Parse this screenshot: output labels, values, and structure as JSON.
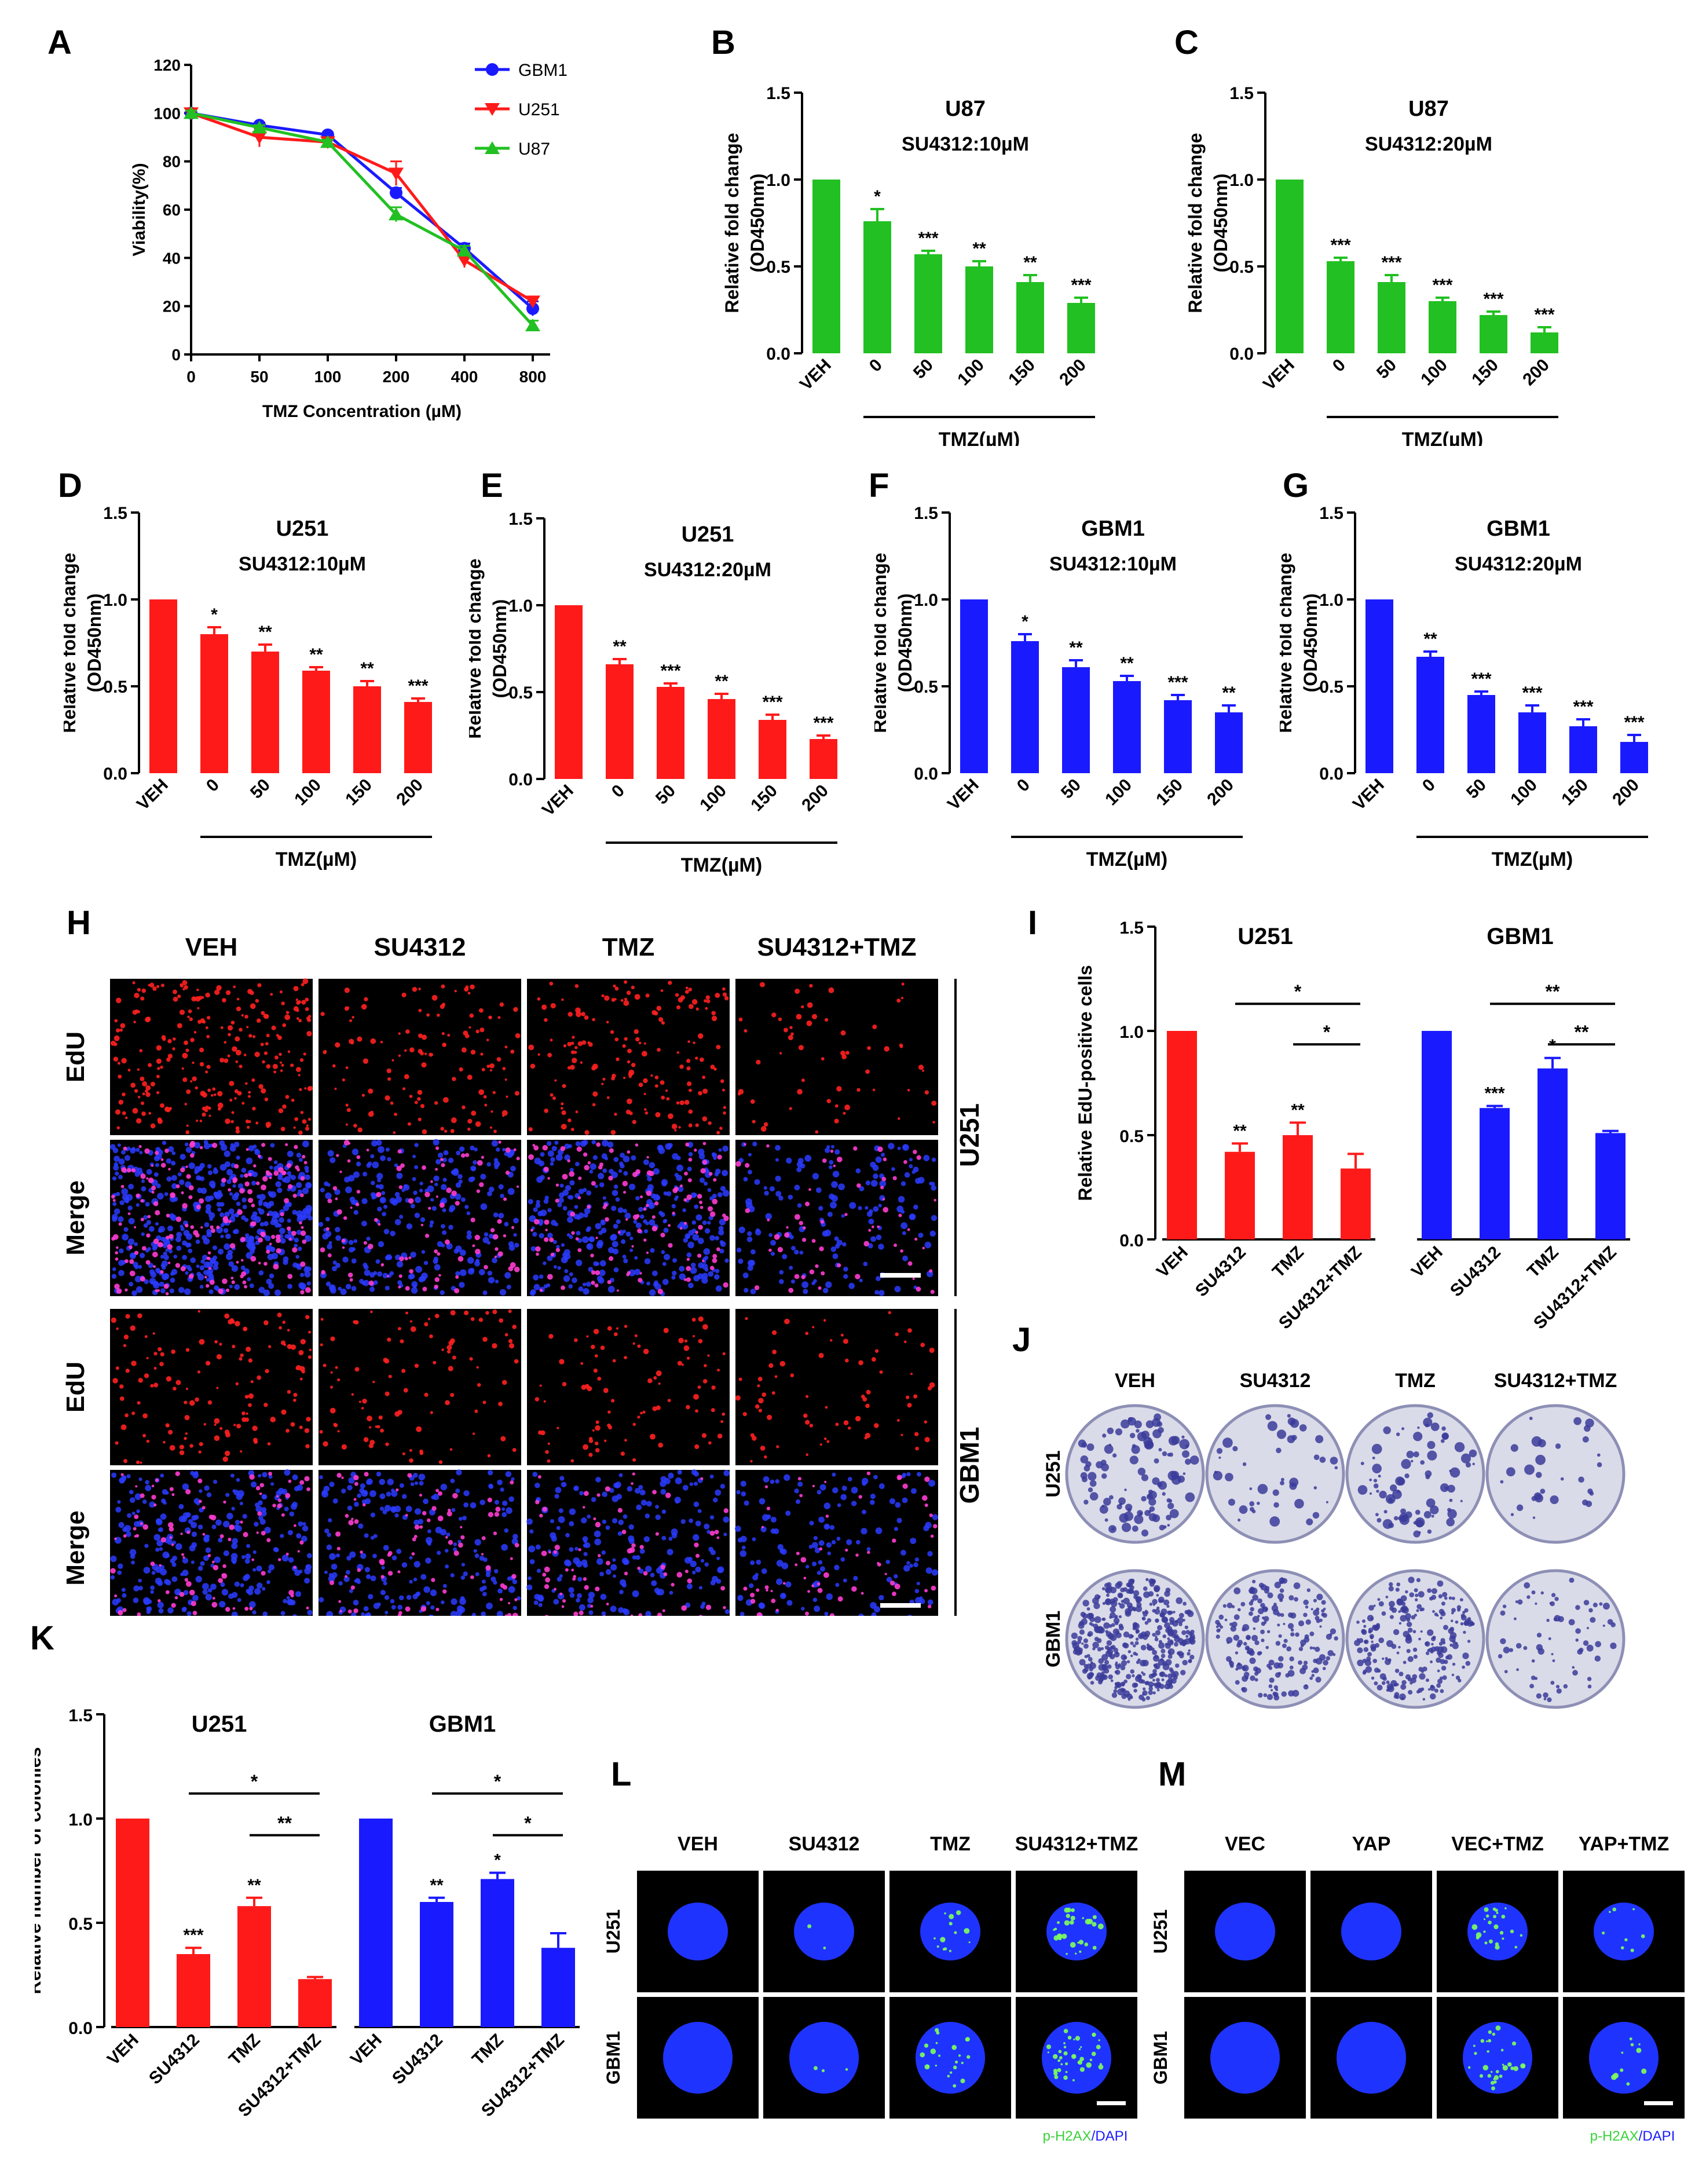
{
  "figure_letters": [
    "A",
    "B",
    "C",
    "D",
    "E",
    "F",
    "G",
    "H",
    "I",
    "J",
    "K",
    "L",
    "M"
  ],
  "colors": {
    "green": "#22c022",
    "red": "#ff1a1a",
    "blue": "#1a1aff",
    "axis": "#000000"
  },
  "chart_data": [
    {
      "id": "A",
      "type": "line",
      "xlabel": "TMZ Concentration (µM)",
      "ylabel": "Viability(%)",
      "categories": [
        "0",
        "50",
        "100",
        "200",
        "400",
        "800"
      ],
      "yticks": [
        "0",
        "20",
        "40",
        "60",
        "80",
        "100",
        "120"
      ],
      "ylim": [
        0,
        120
      ],
      "legend_position": "top-right",
      "series": [
        {
          "name": "GBM1",
          "color": "#1a1aff",
          "marker": "circle",
          "values": [
            100,
            95,
            91,
            67,
            44,
            19
          ],
          "err": [
            1,
            1,
            1,
            2,
            2,
            3
          ]
        },
        {
          "name": "U251",
          "color": "#ff1a1a",
          "marker": "triangle-down",
          "values": [
            100,
            90,
            88,
            75,
            39,
            22
          ],
          "err": [
            1,
            4,
            2,
            5,
            3,
            2
          ]
        },
        {
          "name": "U87",
          "color": "#22c022",
          "marker": "triangle-up",
          "values": [
            100,
            94,
            88,
            58,
            43,
            12
          ],
          "err": [
            1,
            1,
            1,
            3,
            2,
            2
          ]
        }
      ]
    },
    {
      "id": "B",
      "type": "bar",
      "cell": "U87",
      "treatment": "SU4312:10µM",
      "color": "#22c022",
      "ylabel": [
        "Relative fold change",
        "(OD450nm)"
      ],
      "categories": [
        "VEH",
        "0",
        "50",
        "100",
        "150",
        "200"
      ],
      "values": [
        1.0,
        0.76,
        0.57,
        0.5,
        0.41,
        0.29
      ],
      "err": [
        0,
        0.07,
        0.02,
        0.03,
        0.04,
        0.03
      ],
      "sig": [
        "",
        "*",
        "***",
        "**",
        "**",
        "***"
      ],
      "yticks": [
        "0.0",
        "0.5",
        "1.0",
        "1.5"
      ],
      "ylim": [
        0,
        1.5
      ],
      "xgroup": "TMZ(µM)"
    },
    {
      "id": "C",
      "type": "bar",
      "cell": "U87",
      "treatment": "SU4312:20µM",
      "color": "#22c022",
      "ylabel": [
        "Relative fold change",
        "(OD450nm)"
      ],
      "categories": [
        "VEH",
        "0",
        "50",
        "100",
        "150",
        "200"
      ],
      "values": [
        1.0,
        0.53,
        0.41,
        0.3,
        0.22,
        0.12
      ],
      "err": [
        0,
        0.02,
        0.04,
        0.02,
        0.02,
        0.03
      ],
      "sig": [
        "",
        "***",
        "***",
        "***",
        "***",
        "***"
      ],
      "yticks": [
        "0.0",
        "0.5",
        "1.0",
        "1.5"
      ],
      "ylim": [
        0,
        1.5
      ],
      "xgroup": "TMZ(µM)"
    },
    {
      "id": "D",
      "type": "bar",
      "cell": "U251",
      "treatment": "SU4312:10µM",
      "color": "#ff1a1a",
      "ylabel": [
        "Relative fold change",
        "(OD450nm)"
      ],
      "categories": [
        "VEH",
        "0",
        "50",
        "100",
        "150",
        "200"
      ],
      "values": [
        1.0,
        0.8,
        0.7,
        0.59,
        0.5,
        0.41
      ],
      "err": [
        0,
        0.04,
        0.04,
        0.02,
        0.03,
        0.02
      ],
      "sig": [
        "",
        "*",
        "**",
        "**",
        "**",
        "***"
      ],
      "yticks": [
        "0.0",
        "0.5",
        "1.0",
        "1.5"
      ],
      "ylim": [
        0,
        1.5
      ],
      "xgroup": "TMZ(µM)"
    },
    {
      "id": "E",
      "type": "bar",
      "cell": "U251",
      "treatment": "SU4312:20µM",
      "color": "#ff1a1a",
      "ylabel": [
        "Relative fold change",
        "(OD450nm)"
      ],
      "categories": [
        "VEH",
        "0",
        "50",
        "100",
        "150",
        "200"
      ],
      "values": [
        1.0,
        0.66,
        0.53,
        0.46,
        0.34,
        0.23
      ],
      "err": [
        0,
        0.03,
        0.02,
        0.03,
        0.03,
        0.02
      ],
      "sig": [
        "",
        "**",
        "***",
        "**",
        "***",
        "***"
      ],
      "yticks": [
        "0.0",
        "0.5",
        "1.0",
        "1.5"
      ],
      "ylim": [
        0,
        1.5
      ],
      "xgroup": "TMZ(µM)"
    },
    {
      "id": "F",
      "type": "bar",
      "cell": "GBM1",
      "treatment": "SU4312:10µM",
      "color": "#1a1aff",
      "ylabel": [
        "Relative fold change",
        "(OD450nm)"
      ],
      "categories": [
        "VEH",
        "0",
        "50",
        "100",
        "150",
        "200"
      ],
      "values": [
        1.0,
        0.76,
        0.61,
        0.53,
        0.42,
        0.35
      ],
      "err": [
        0,
        0.04,
        0.04,
        0.03,
        0.03,
        0.04
      ],
      "sig": [
        "",
        "*",
        "**",
        "**",
        "***",
        "**"
      ],
      "yticks": [
        "0.0",
        "0.5",
        "1.0",
        "1.5"
      ],
      "ylim": [
        0,
        1.5
      ],
      "xgroup": "TMZ(µM)"
    },
    {
      "id": "G",
      "type": "bar",
      "cell": "GBM1",
      "treatment": "SU4312:20µM",
      "color": "#1a1aff",
      "ylabel": [
        "Relative fold change",
        "(OD450nm)"
      ],
      "categories": [
        "VEH",
        "0",
        "50",
        "100",
        "150",
        "200"
      ],
      "values": [
        1.0,
        0.67,
        0.45,
        0.35,
        0.27,
        0.18
      ],
      "err": [
        0,
        0.03,
        0.02,
        0.04,
        0.04,
        0.04
      ],
      "sig": [
        "",
        "**",
        "***",
        "***",
        "***",
        "***"
      ],
      "yticks": [
        "0.0",
        "0.5",
        "1.0",
        "1.5"
      ],
      "ylim": [
        0,
        1.5
      ],
      "xgroup": "TMZ(µM)"
    },
    {
      "id": "I",
      "type": "bar",
      "ylabel": [
        "Relative EdU-positive cells"
      ],
      "yticks": [
        "0.0",
        "0.5",
        "1.0",
        "1.5"
      ],
      "ylim": [
        0,
        1.5
      ],
      "groups": [
        {
          "name": "U251",
          "color": "#ff1a1a",
          "categories": [
            "VEH",
            "SU4312",
            "TMZ",
            "SU4312+TMZ"
          ],
          "values": [
            1.0,
            0.42,
            0.5,
            0.34
          ],
          "err": [
            0,
            0.04,
            0.06,
            0.07
          ],
          "sig": [
            "",
            "**",
            "**",
            ""
          ],
          "brackets": [
            {
              "from": 1,
              "to": 3,
              "level": 0,
              "label": "*"
            },
            {
              "from": 2,
              "to": 3,
              "level": 1,
              "label": "*"
            }
          ]
        },
        {
          "name": "GBM1",
          "color": "#1a1aff",
          "categories": [
            "VEH",
            "SU4312",
            "TMZ",
            "SU4312+TMZ"
          ],
          "values": [
            1.0,
            0.63,
            0.82,
            0.51
          ],
          "err": [
            0,
            0.01,
            0.05,
            0.01
          ],
          "sig": [
            "",
            "***",
            "*",
            ""
          ],
          "brackets": [
            {
              "from": 1,
              "to": 3,
              "level": 0,
              "label": "**"
            },
            {
              "from": 2,
              "to": 3,
              "level": 1,
              "label": "**"
            }
          ]
        }
      ]
    },
    {
      "id": "K",
      "type": "bar",
      "ylabel": [
        "Relative number of colonies"
      ],
      "yticks": [
        "0.0",
        "0.5",
        "1.0",
        "1.5"
      ],
      "ylim": [
        0,
        1.5
      ],
      "groups": [
        {
          "name": "U251",
          "color": "#ff1a1a",
          "categories": [
            "VEH",
            "SU4312",
            "TMZ",
            "SU4312+TMZ"
          ],
          "values": [
            1.0,
            0.35,
            0.58,
            0.23
          ],
          "err": [
            0,
            0.03,
            0.04,
            0.01
          ],
          "sig": [
            "",
            "***",
            "**",
            ""
          ],
          "brackets": [
            {
              "from": 1,
              "to": 3,
              "level": 0,
              "label": "*"
            },
            {
              "from": 2,
              "to": 3,
              "level": 1,
              "label": "**"
            }
          ]
        },
        {
          "name": "GBM1",
          "color": "#1a1aff",
          "categories": [
            "VEH",
            "SU4312",
            "TMZ",
            "SU4312+TMZ"
          ],
          "values": [
            1.0,
            0.6,
            0.71,
            0.38
          ],
          "err": [
            0,
            0.02,
            0.03,
            0.07
          ],
          "sig": [
            "",
            "**",
            "*",
            ""
          ],
          "brackets": [
            {
              "from": 1,
              "to": 3,
              "level": 0,
              "label": "*"
            },
            {
              "from": 2,
              "to": 3,
              "level": 1,
              "label": "*"
            }
          ]
        }
      ]
    }
  ],
  "panel_H": {
    "columns": [
      "VEH",
      "SU4312",
      "TMZ",
      "SU4312+TMZ"
    ],
    "rows": [
      "EdU",
      "Merge",
      "EdU",
      "Merge"
    ],
    "cells": [
      "U251",
      "GBM1"
    ],
    "density": [
      [
        260,
        130,
        170,
        60
      ],
      [
        260,
        140,
        180,
        90
      ],
      [
        140,
        100,
        95,
        75
      ],
      [
        150,
        120,
        110,
        85
      ]
    ]
  },
  "panel_J": {
    "columns": [
      "VEH",
      "SU4312",
      "TMZ",
      "SU4312+TMZ"
    ],
    "rows": [
      "U251",
      "GBM1"
    ],
    "colonies": [
      [
        110,
        45,
        80,
        30
      ],
      [
        420,
        200,
        230,
        70
      ]
    ]
  },
  "panel_L": {
    "columns": [
      "VEH",
      "SU4312",
      "TMZ",
      "SU4312+TMZ"
    ],
    "rows": [
      "U251",
      "GBM1"
    ],
    "foci": [
      [
        0,
        2,
        14,
        30
      ],
      [
        0,
        3,
        22,
        40
      ]
    ],
    "legend": {
      "green": "p-H2AX",
      "sep": "/",
      "blue": "DAPI"
    }
  },
  "panel_M": {
    "columns": [
      "VEC",
      "YAP",
      "VEC+TMZ",
      "YAP+TMZ"
    ],
    "rows": [
      "U251",
      "GBM1"
    ],
    "foci": [
      [
        0,
        0,
        24,
        8
      ],
      [
        0,
        0,
        30,
        10
      ]
    ],
    "legend": {
      "green": "p-H2AX",
      "sep": "/",
      "blue": "DAPI"
    }
  }
}
